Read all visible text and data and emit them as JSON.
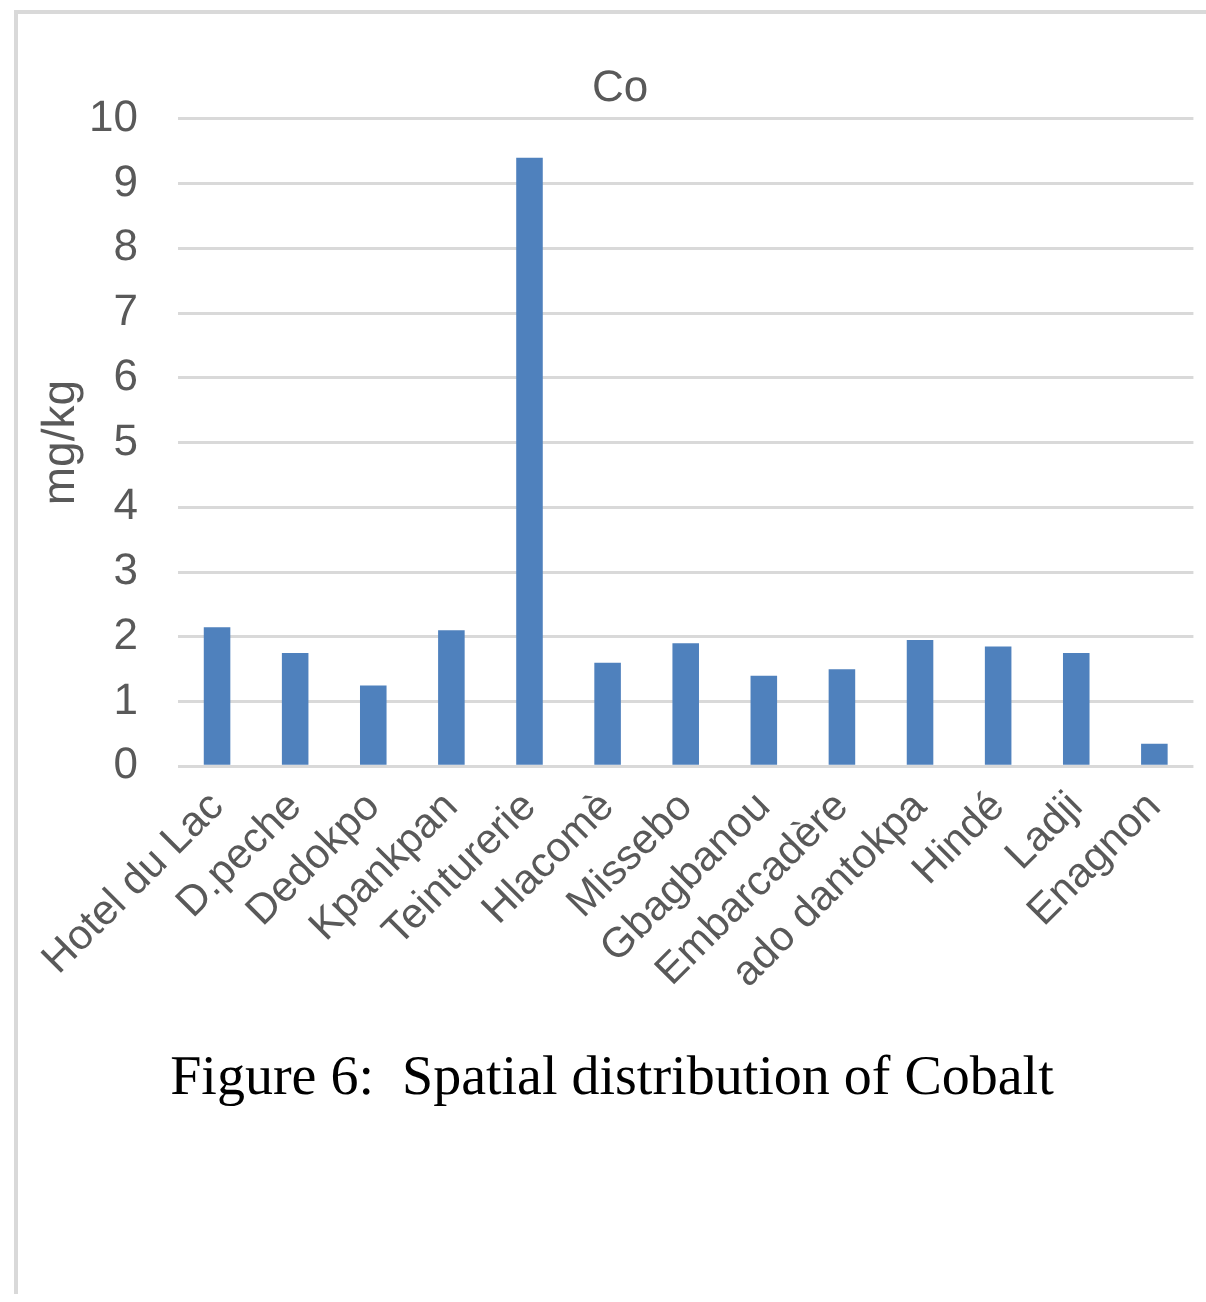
{
  "chart_data": {
    "type": "bar",
    "title": "Co",
    "ylabel": "mg/kg",
    "categories": [
      "Hotel du Lac",
      "D.peche",
      "Dedokpo",
      "Kpankpan",
      "Teinturerie",
      "Hlacomè",
      "Missebo",
      "Gbagbanou",
      "Embarcadère",
      "ado dantokpa",
      "Hindé",
      "Ladji",
      "Enagnon"
    ],
    "values": [
      2.15,
      1.75,
      1.25,
      2.1,
      9.4,
      1.6,
      1.9,
      1.4,
      1.5,
      1.95,
      1.85,
      1.75,
      0.35
    ],
    "color": "#4f81bd",
    "ylim": [
      0,
      10
    ],
    "yticks": [
      0,
      1,
      2,
      3,
      4,
      5,
      6,
      7,
      8,
      9,
      10
    ],
    "grid": "y",
    "annotations": [
      "Figure 6:  Spatial distribution of Cobalt"
    ]
  }
}
